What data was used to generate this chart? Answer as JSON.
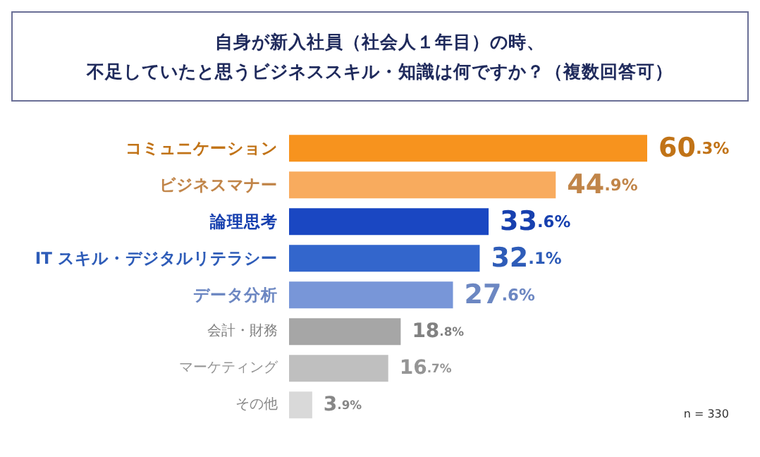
{
  "chart_data": {
    "type": "bar",
    "orientation": "horizontal",
    "title": "自身が新入社員（社会人１年目）の時、",
    "subtitle": "不足していたと思うビジネススキル・知識は何ですか？（複数回答可）",
    "categories": [
      "コミュニケーション",
      "ビジネスマナー",
      "論理思考",
      "IT スキル・デジタルリテラシー",
      "データ分析",
      "会計・財務",
      "マーケティング",
      "その他"
    ],
    "values": [
      60.3,
      44.9,
      33.6,
      32.1,
      27.6,
      18.8,
      16.7,
      3.9
    ],
    "value_labels": [
      "60.3%",
      "44.9%",
      "33.6%",
      "32.1%",
      "27.6%",
      "18.8%",
      "16.7%",
      "3.9%"
    ],
    "colors": [
      "#f7931e",
      "#f8ab5e",
      "#1a47c2",
      "#3366cc",
      "#7896d8",
      "#a6a6a6",
      "#bfbfbf",
      "#d9d9d9"
    ],
    "annotations": [
      "n = 330"
    ]
  }
}
